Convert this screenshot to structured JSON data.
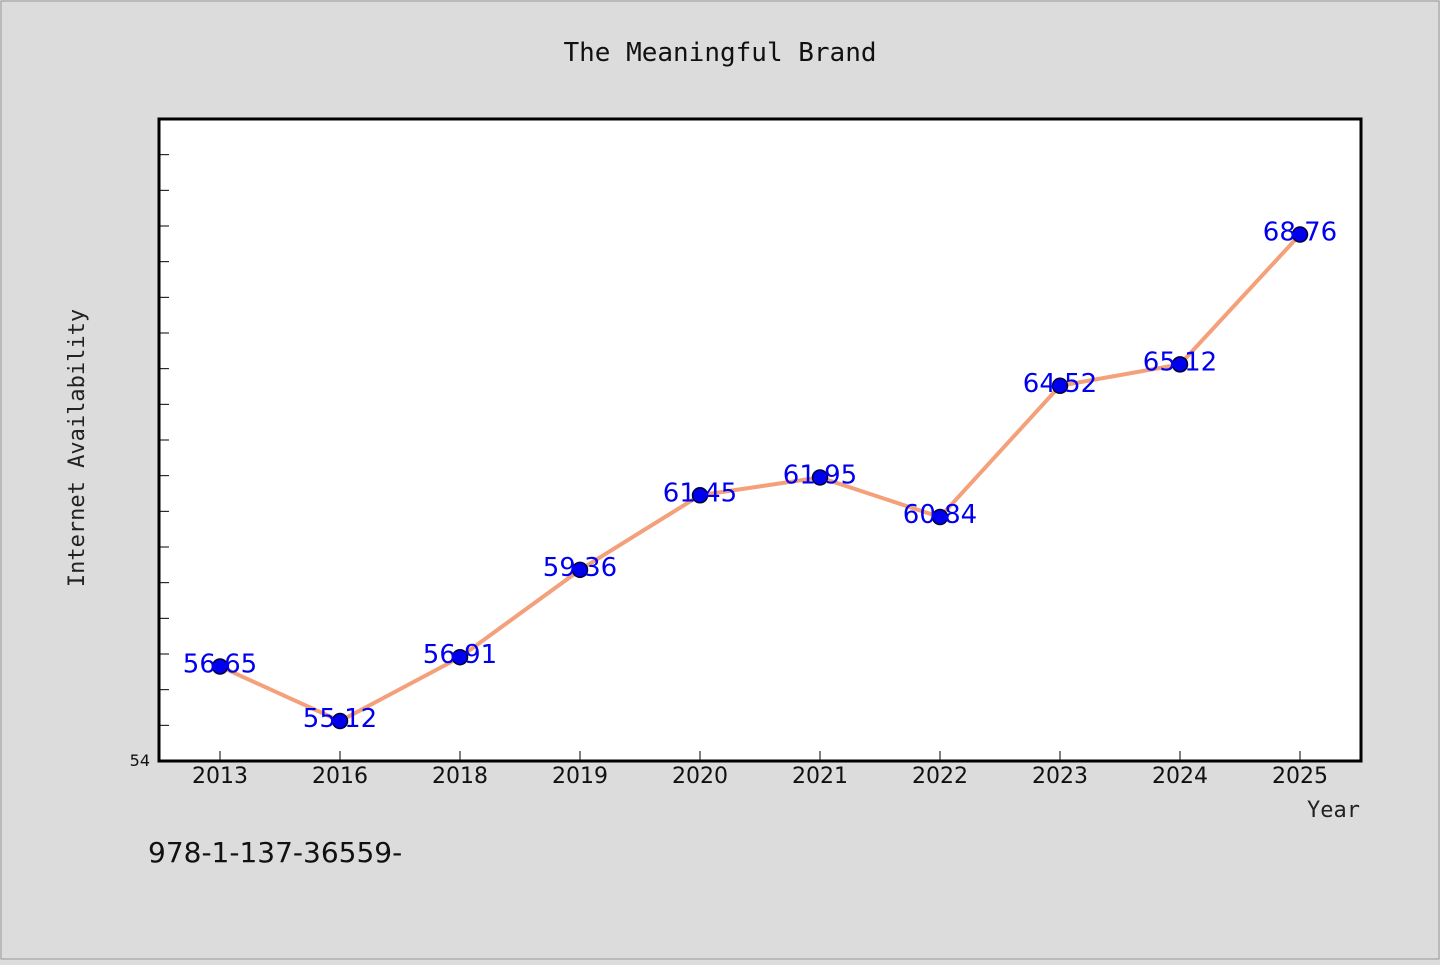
{
  "chart_data": {
    "type": "line",
    "title": "The Meaningful Brand",
    "xlabel": "Year",
    "ylabel": "Internet Availability",
    "categories": [
      "2013",
      "2016",
      "2018",
      "2019",
      "2020",
      "2021",
      "2022",
      "2023",
      "2024",
      "2025"
    ],
    "series": [
      {
        "values": [
          56.65,
          55.12,
          56.91,
          59.36,
          61.45,
          61.95,
          60.84,
          64.52,
          65.12,
          68.76
        ]
      }
    ],
    "ylim": [
      54,
      72
    ],
    "y_tick_labels": [
      "54"
    ],
    "data_labels": [
      "56.65",
      "55.12",
      "56.91",
      "59.36",
      "61.45",
      "61.95",
      "60.84",
      "64.52",
      "65.12",
      "68.76"
    ],
    "grid": false,
    "colors": {
      "line": "#f4a07a",
      "marker": "#0000ee",
      "marker_edge": "#000033",
      "data_label": "#0000ee",
      "background": "#dcdcdc",
      "plot_background": "#ffffff"
    }
  },
  "footer": {
    "text": "978-1-137-36559-"
  }
}
